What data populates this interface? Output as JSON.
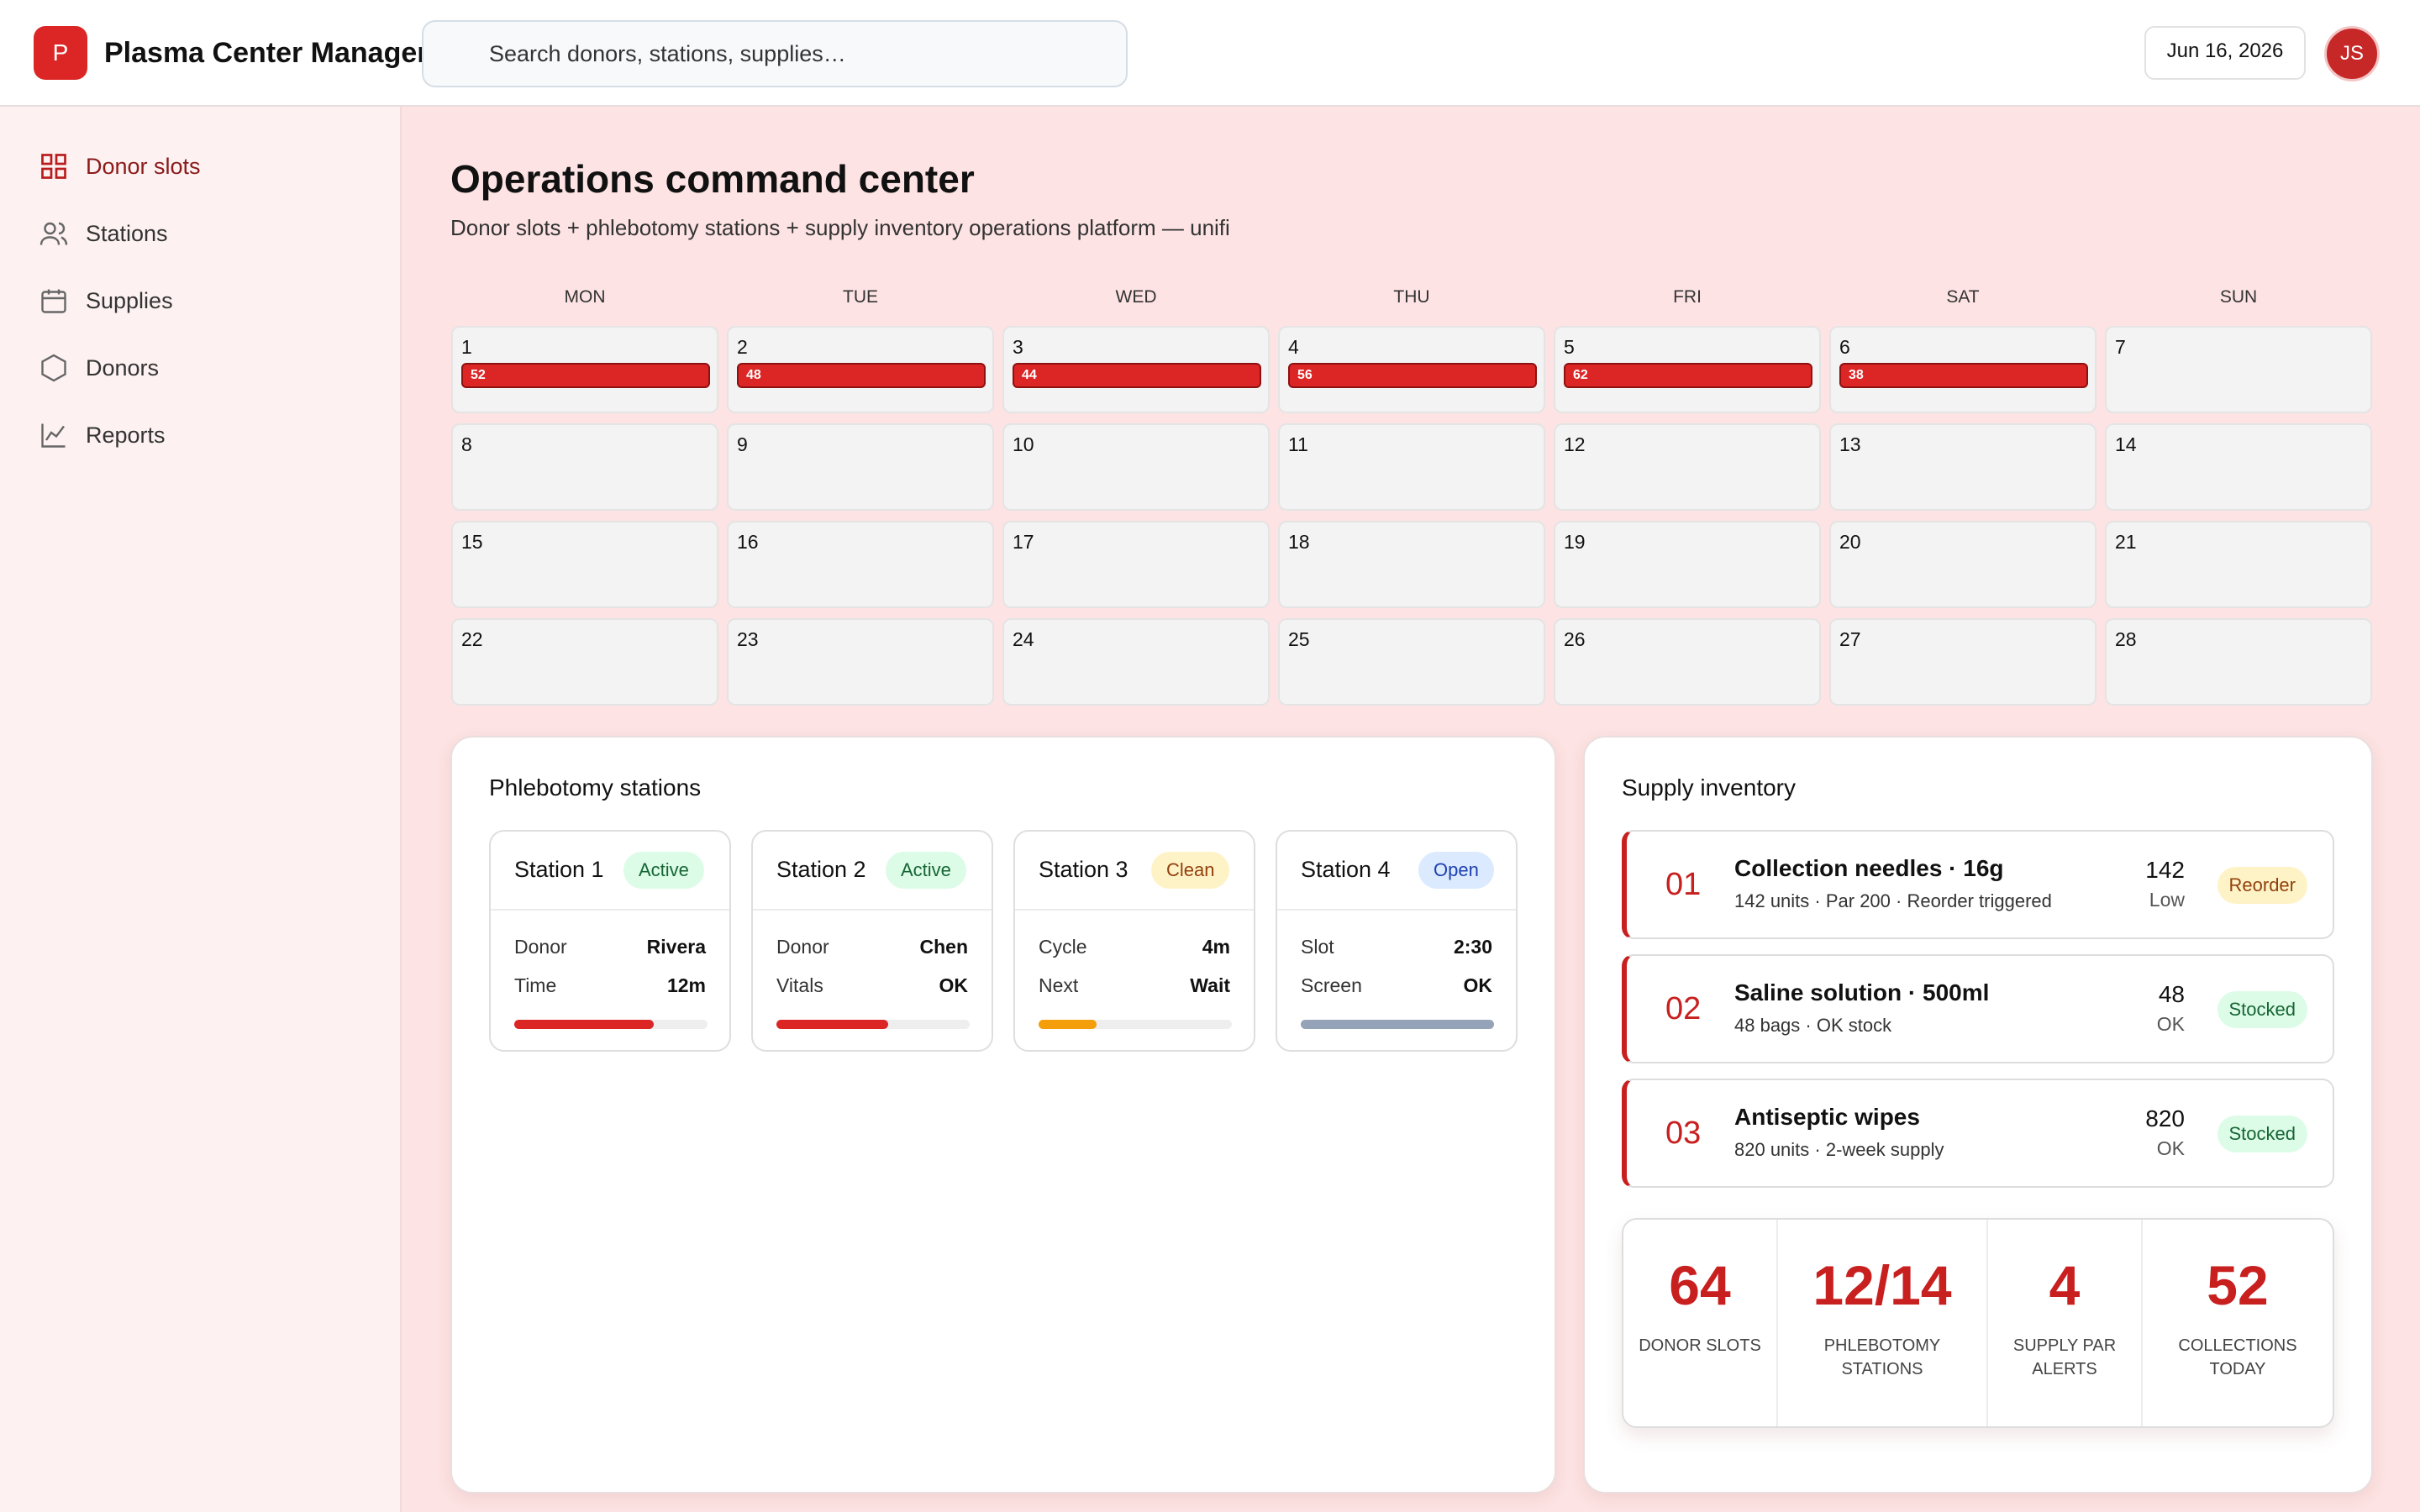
{
  "app": {
    "logo_letter": "P",
    "title": "Plasma Center Manager",
    "brand_color": "#dc2626"
  },
  "search": {
    "placeholder": "Search donors, stations, supplies…"
  },
  "header": {
    "date": "Jun 16, 2026",
    "avatar_initials": "JS"
  },
  "sidebar": {
    "items": [
      {
        "label": "Donor slots",
        "icon": "grid-icon",
        "active": true
      },
      {
        "label": "Stations",
        "icon": "users-icon",
        "active": false
      },
      {
        "label": "Supplies",
        "icon": "calendar-icon",
        "active": false
      },
      {
        "label": "Donors",
        "icon": "hexagon-icon",
        "active": false
      },
      {
        "label": "Reports",
        "icon": "line-chart-icon",
        "active": false
      }
    ]
  },
  "main": {
    "title": "Operations command center",
    "subtitle": "Donor slots + phlebotomy stations + supply inventory operations platform — unifi"
  },
  "calendar": {
    "weekdays": [
      "MON",
      "TUE",
      "WED",
      "THU",
      "FRI",
      "SAT",
      "SUN"
    ],
    "weeks": [
      [
        {
          "day": "1",
          "slots": "52"
        },
        {
          "day": "2",
          "slots": "48"
        },
        {
          "day": "3",
          "slots": "44"
        },
        {
          "day": "4",
          "slots": "56"
        },
        {
          "day": "5",
          "slots": "62"
        },
        {
          "day": "6",
          "slots": "38"
        },
        {
          "day": "7",
          "slots": ""
        }
      ],
      [
        {
          "day": "8",
          "slots": ""
        },
        {
          "day": "9",
          "slots": ""
        },
        {
          "day": "10",
          "slots": ""
        },
        {
          "day": "11",
          "slots": ""
        },
        {
          "day": "12",
          "slots": ""
        },
        {
          "day": "13",
          "slots": ""
        },
        {
          "day": "14",
          "slots": ""
        }
      ],
      [
        {
          "day": "15",
          "slots": ""
        },
        {
          "day": "16",
          "slots": ""
        },
        {
          "day": "17",
          "slots": ""
        },
        {
          "day": "18",
          "slots": ""
        },
        {
          "day": "19",
          "slots": ""
        },
        {
          "day": "20",
          "slots": ""
        },
        {
          "day": "21",
          "slots": ""
        }
      ],
      [
        {
          "day": "22",
          "slots": ""
        },
        {
          "day": "23",
          "slots": ""
        },
        {
          "day": "24",
          "slots": ""
        },
        {
          "day": "25",
          "slots": ""
        },
        {
          "day": "26",
          "slots": ""
        },
        {
          "day": "27",
          "slots": ""
        },
        {
          "day": "28",
          "slots": ""
        }
      ]
    ]
  },
  "stations_panel": {
    "title": "Phlebotomy stations",
    "stations": [
      {
        "name": "Station 1",
        "status": "Active",
        "status_bg": "#dcfce7",
        "status_fg": "#166534",
        "row1_label": "Donor",
        "row1_value": "Rivera",
        "row2_label": "Time",
        "row2_value": "12m",
        "progress": 0.72,
        "progress_color": "#dc2626"
      },
      {
        "name": "Station 2",
        "status": "Active",
        "status_bg": "#dcfce7",
        "status_fg": "#166534",
        "row1_label": "Donor",
        "row1_value": "Chen",
        "row2_label": "Vitals",
        "row2_value": "OK",
        "progress": 0.58,
        "progress_color": "#dc2626"
      },
      {
        "name": "Station 3",
        "status": "Clean",
        "status_bg": "#fef3c7",
        "status_fg": "#92400e",
        "row1_label": "Cycle",
        "row1_value": "4m",
        "row2_label": "Next",
        "row2_value": "Wait",
        "progress": 0.3,
        "progress_color": "#f59e0b"
      },
      {
        "name": "Station 4",
        "status": "Open",
        "status_bg": "#dbeafe",
        "status_fg": "#1e40af",
        "row1_label": "Slot",
        "row1_value": "2:30",
        "row2_label": "Screen",
        "row2_value": "OK",
        "progress": 1.0,
        "progress_color": "#94a3b8"
      }
    ]
  },
  "inventory_panel": {
    "title": "Supply inventory",
    "items": [
      {
        "num": "01",
        "name": "Collection needles · 16g",
        "detail": "142 units · Par 200 · Reorder triggered",
        "qty": "142",
        "qty_label": "Low",
        "badge": "Reorder",
        "badge_bg": "#fef3c7",
        "badge_fg": "#92400e"
      },
      {
        "num": "02",
        "name": "Saline solution · 500ml",
        "detail": "48 bags · OK stock",
        "qty": "48",
        "qty_label": "OK",
        "badge": "Stocked",
        "badge_bg": "#dcfce7",
        "badge_fg": "#166534"
      },
      {
        "num": "03",
        "name": "Antiseptic wipes",
        "detail": "820 units · 2-week supply",
        "qty": "820",
        "qty_label": "OK",
        "badge": "Stocked",
        "badge_bg": "#dcfce7",
        "badge_fg": "#166534"
      }
    ],
    "stats": [
      {
        "value": "64",
        "label": "DONOR SLOTS"
      },
      {
        "value": "12/14",
        "label": "PHLEBOTOMY STATIONS"
      },
      {
        "value": "4",
        "label": "SUPPLY PAR ALERTS"
      },
      {
        "value": "52",
        "label": "COLLECTIONS TODAY"
      }
    ]
  }
}
